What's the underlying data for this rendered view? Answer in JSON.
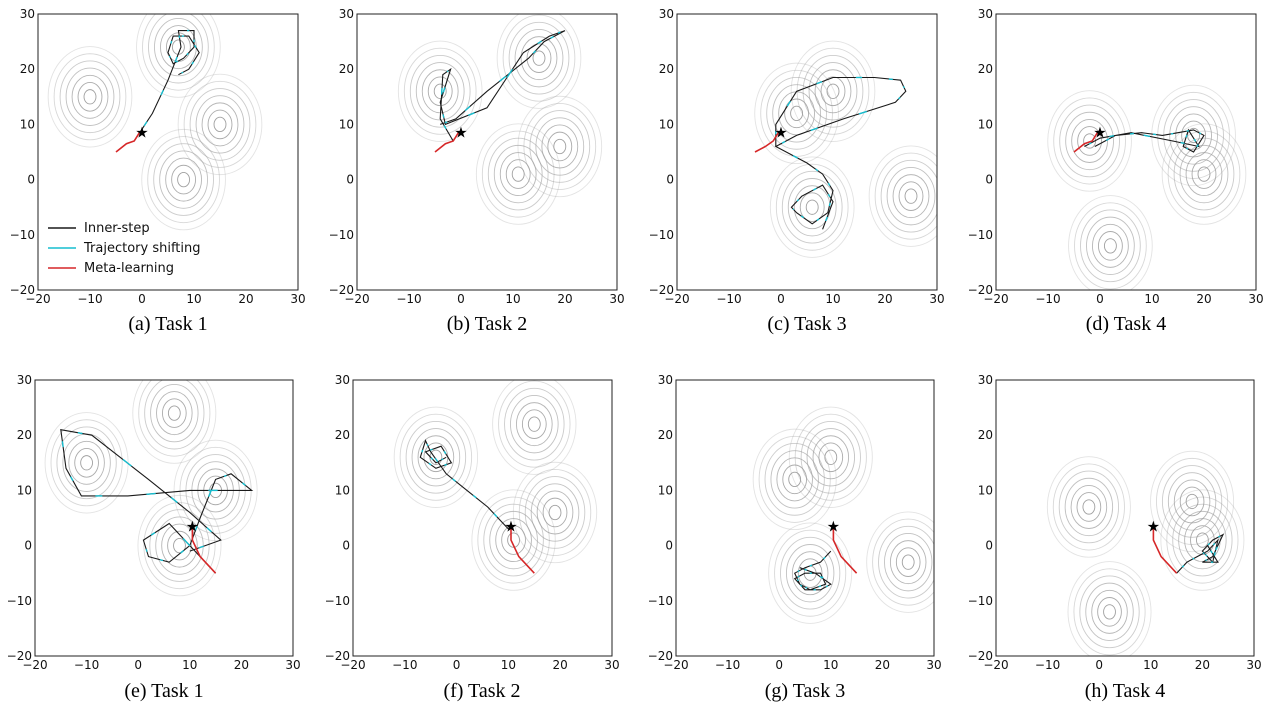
{
  "legend": [
    {
      "label": "Inner-step",
      "color": "#1a1a1a"
    },
    {
      "label": "Trajectory shifting",
      "color": "#17becf"
    },
    {
      "label": "Meta-learning",
      "color": "#d62728"
    }
  ],
  "colors": {
    "inner": "#1a1a1a",
    "shift": "#17becf",
    "meta": "#d62728",
    "contour": "#9a9a9a",
    "start": "#000000"
  },
  "chart_data": [
    {
      "type": "line",
      "caption": "(a) Task 1",
      "xlim": [
        -20,
        30
      ],
      "ylim": [
        -20,
        30
      ],
      "xticks": [
        -20,
        -10,
        0,
        10,
        20,
        30
      ],
      "yticks": [
        -20,
        -10,
        0,
        10,
        20,
        30
      ],
      "contours": [
        [
          -10,
          15
        ],
        [
          7,
          24
        ],
        [
          15,
          10
        ],
        [
          8,
          0
        ]
      ],
      "start": [
        0,
        8.5
      ],
      "meta": [
        [
          -5,
          5
        ],
        [
          -3,
          6.5
        ],
        [
          -1.5,
          7
        ],
        [
          -0.5,
          8.5
        ],
        [
          0,
          8.5
        ]
      ],
      "inner": [
        [
          -1.5,
          7
        ],
        [
          2,
          12
        ],
        [
          5,
          18
        ],
        [
          7.5,
          24
        ],
        [
          7,
          27
        ],
        [
          10,
          27
        ],
        [
          10,
          24
        ],
        [
          8,
          22
        ],
        [
          6,
          21
        ],
        [
          5,
          23
        ],
        [
          6,
          26
        ],
        [
          9,
          26
        ],
        [
          11,
          23
        ],
        [
          9,
          20
        ],
        [
          7,
          19
        ]
      ]
    },
    {
      "type": "line",
      "caption": "(b) Task 2",
      "xlim": [
        -20,
        30
      ],
      "ylim": [
        -20,
        30
      ],
      "xticks": [
        -20,
        -10,
        0,
        10,
        20,
        30
      ],
      "yticks": [
        -20,
        -10,
        0,
        10,
        20,
        30
      ],
      "contours": [
        [
          -4,
          16
        ],
        [
          15,
          22
        ],
        [
          19,
          6
        ],
        [
          11,
          1
        ]
      ],
      "start": [
        0,
        8.5
      ],
      "meta": [
        [
          -5,
          5
        ],
        [
          -3,
          6.5
        ],
        [
          -1.5,
          7
        ],
        [
          -0.5,
          8.5
        ],
        [
          0,
          8.5
        ]
      ],
      "inner": [
        [
          -1.5,
          7
        ],
        [
          -4,
          11
        ],
        [
          -3.5,
          19
        ],
        [
          -2,
          20
        ],
        [
          -4,
          14
        ],
        [
          -3,
          10
        ],
        [
          5,
          13
        ],
        [
          12,
          23
        ],
        [
          17,
          26
        ],
        [
          20,
          27
        ],
        [
          16,
          25
        ],
        [
          13,
          22
        ],
        [
          5,
          16
        ],
        [
          -1,
          11
        ],
        [
          -4,
          10
        ]
      ]
    },
    {
      "type": "line",
      "caption": "(c) Task 3",
      "xlim": [
        -20,
        30
      ],
      "ylim": [
        -20,
        30
      ],
      "xticks": [
        -20,
        -10,
        0,
        10,
        20,
        30
      ],
      "yticks": [
        -20,
        -10,
        0,
        10,
        20,
        30
      ],
      "contours": [
        [
          10,
          16
        ],
        [
          3,
          12
        ],
        [
          6,
          -5
        ],
        [
          25,
          -3
        ]
      ],
      "start": [
        0,
        8.5
      ],
      "meta": [
        [
          -5,
          5
        ],
        [
          -3,
          6
        ],
        [
          -1.5,
          7
        ],
        [
          -0.5,
          8.5
        ],
        [
          0,
          8.5
        ]
      ],
      "inner": [
        [
          -1,
          6
        ],
        [
          -1,
          10
        ],
        [
          3,
          16
        ],
        [
          10,
          18.5
        ],
        [
          18,
          18.5
        ],
        [
          23,
          18
        ],
        [
          24,
          16
        ],
        [
          22,
          14
        ],
        [
          12,
          11
        ],
        [
          3,
          8
        ],
        [
          -1,
          6
        ],
        [
          5,
          3
        ],
        [
          8,
          1
        ],
        [
          10,
          -2
        ],
        [
          9,
          -6
        ],
        [
          6,
          -8
        ],
        [
          3,
          -6
        ],
        [
          2,
          -5
        ],
        [
          4,
          -3
        ],
        [
          8,
          -1
        ],
        [
          10,
          -4
        ],
        [
          8,
          -9
        ]
      ]
    },
    {
      "type": "line",
      "caption": "(d) Task 4",
      "xlim": [
        -20,
        30
      ],
      "ylim": [
        -20,
        30
      ],
      "xticks": [
        -20,
        -10,
        0,
        10,
        20,
        30
      ],
      "yticks": [
        -20,
        -10,
        0,
        10,
        20,
        30
      ],
      "contours": [
        [
          -2,
          7
        ],
        [
          18,
          8
        ],
        [
          20,
          1
        ],
        [
          2,
          -12
        ]
      ],
      "start": [
        0,
        8.5
      ],
      "meta": [
        [
          -5,
          5
        ],
        [
          -3,
          6.5
        ],
        [
          -1.5,
          7
        ],
        [
          -0.5,
          8.5
        ],
        [
          0,
          8.5
        ]
      ],
      "inner": [
        [
          -1,
          6
        ],
        [
          3,
          8
        ],
        [
          8,
          8.5
        ],
        [
          12,
          8
        ],
        [
          15,
          8.5
        ],
        [
          18,
          9
        ],
        [
          20,
          8
        ],
        [
          18,
          5
        ],
        [
          16,
          6
        ],
        [
          17,
          9
        ],
        [
          19,
          6
        ],
        [
          14,
          7
        ],
        [
          6,
          8.5
        ],
        [
          0,
          7.5
        ],
        [
          -3,
          6
        ]
      ]
    },
    {
      "type": "line",
      "caption": "(e) Task 1",
      "xlim": [
        -20,
        30
      ],
      "ylim": [
        -20,
        30
      ],
      "xticks": [
        -20,
        -10,
        0,
        10,
        20,
        30
      ],
      "yticks": [
        -20,
        -10,
        0,
        10,
        20,
        30
      ],
      "contours": [
        [
          -10,
          15
        ],
        [
          7,
          24
        ],
        [
          15,
          10
        ],
        [
          8,
          0
        ]
      ],
      "start": [
        10.5,
        3.5
      ],
      "meta": [
        [
          15,
          -5
        ],
        [
          12,
          -2
        ],
        [
          10.5,
          1
        ],
        [
          10.5,
          3
        ],
        [
          10.5,
          3.5
        ]
      ],
      "inner": [
        [
          15,
          -5
        ],
        [
          6,
          4
        ],
        [
          1,
          1
        ],
        [
          2,
          -2
        ],
        [
          6,
          -3
        ],
        [
          10,
          0
        ],
        [
          12,
          5
        ],
        [
          15,
          12
        ],
        [
          18,
          13
        ],
        [
          22,
          10
        ],
        [
          10,
          10
        ],
        [
          -2,
          9
        ],
        [
          -11,
          9
        ],
        [
          -14,
          14
        ],
        [
          -15,
          21
        ],
        [
          -9,
          20
        ],
        [
          2,
          12
        ],
        [
          10,
          6
        ],
        [
          16,
          1
        ],
        [
          10,
          -1
        ]
      ]
    },
    {
      "type": "line",
      "caption": "(f) Task 2",
      "xlim": [
        -20,
        30
      ],
      "ylim": [
        -20,
        30
      ],
      "xticks": [
        -20,
        -10,
        0,
        10,
        20,
        30
      ],
      "yticks": [
        -20,
        -10,
        0,
        10,
        20,
        30
      ],
      "contours": [
        [
          -4,
          16
        ],
        [
          15,
          22
        ],
        [
          19,
          6
        ],
        [
          11,
          1
        ]
      ],
      "start": [
        10.5,
        3.5
      ],
      "meta": [
        [
          15,
          -5
        ],
        [
          12,
          -2
        ],
        [
          10.5,
          1
        ],
        [
          10.5,
          3
        ],
        [
          10.5,
          3.5
        ]
      ],
      "inner": [
        [
          10,
          3
        ],
        [
          6,
          7
        ],
        [
          2,
          10
        ],
        [
          -2,
          13
        ],
        [
          -5,
          17
        ],
        [
          -6,
          19
        ],
        [
          -7,
          16
        ],
        [
          -4,
          14
        ],
        [
          -1,
          15
        ],
        [
          -3,
          18
        ],
        [
          -6,
          17
        ],
        [
          -4,
          15
        ],
        [
          -2,
          16
        ]
      ]
    },
    {
      "type": "line",
      "caption": "(g) Task 3",
      "xlim": [
        -20,
        30
      ],
      "ylim": [
        -20,
        30
      ],
      "xticks": [
        -20,
        -10,
        0,
        10,
        20,
        30
      ],
      "yticks": [
        -20,
        -10,
        0,
        10,
        20,
        30
      ],
      "contours": [
        [
          10,
          16
        ],
        [
          3,
          12
        ],
        [
          6,
          -5
        ],
        [
          25,
          -3
        ]
      ],
      "start": [
        10.5,
        3.5
      ],
      "meta": [
        [
          15,
          -5
        ],
        [
          12,
          -2
        ],
        [
          10.5,
          1
        ],
        [
          10.5,
          3
        ],
        [
          10.5,
          3.5
        ]
      ],
      "inner": [
        [
          10,
          -1
        ],
        [
          8,
          -3
        ],
        [
          5,
          -4
        ],
        [
          3,
          -5
        ],
        [
          4,
          -7
        ],
        [
          6,
          -8
        ],
        [
          9,
          -7
        ],
        [
          8,
          -5
        ],
        [
          5,
          -5
        ],
        [
          3,
          -6
        ],
        [
          5,
          -8
        ],
        [
          8,
          -8
        ],
        [
          10,
          -7
        ],
        [
          7,
          -5
        ],
        [
          4,
          -4
        ]
      ]
    },
    {
      "type": "line",
      "caption": "(h) Task 4",
      "xlim": [
        -20,
        30
      ],
      "ylim": [
        -20,
        30
      ],
      "xticks": [
        -20,
        -10,
        0,
        10,
        20,
        30
      ],
      "yticks": [
        -20,
        -10,
        0,
        10,
        20,
        30
      ],
      "contours": [
        [
          -2,
          7
        ],
        [
          18,
          8
        ],
        [
          20,
          1
        ],
        [
          2,
          -12
        ]
      ],
      "start": [
        10.5,
        3.5
      ],
      "meta": [
        [
          15,
          -5
        ],
        [
          12,
          -2
        ],
        [
          10.5,
          1
        ],
        [
          10.5,
          3
        ],
        [
          10.5,
          3.5
        ]
      ],
      "inner": [
        [
          15,
          -5
        ],
        [
          17,
          -3
        ],
        [
          19,
          -2
        ],
        [
          21,
          -1
        ],
        [
          23,
          1
        ],
        [
          22,
          -3
        ],
        [
          20,
          -1
        ],
        [
          22,
          1
        ],
        [
          24,
          2
        ],
        [
          22,
          -2
        ],
        [
          20,
          -3
        ],
        [
          23,
          -3
        ],
        [
          21,
          0
        ]
      ]
    }
  ]
}
